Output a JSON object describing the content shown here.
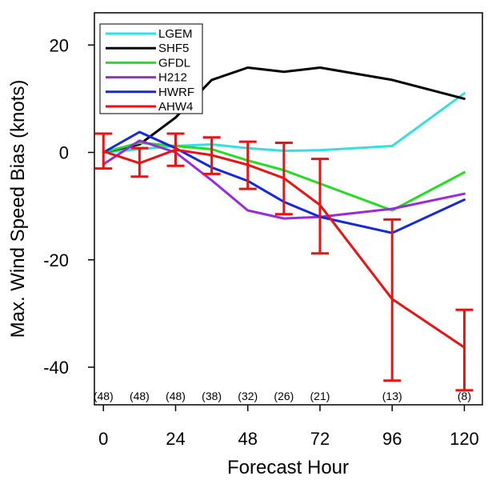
{
  "chart_data": {
    "type": "line",
    "title": "",
    "xlabel": "Forecast Hour",
    "ylabel": "Max. Wind Speed Bias (knots)",
    "xlim": [
      -3,
      126
    ],
    "ylim": [
      -47,
      26
    ],
    "x_ticks": [
      0,
      24,
      48,
      72,
      96,
      120
    ],
    "x_tick_labels": [
      "0",
      "24",
      "48",
      "72",
      "96",
      "120"
    ],
    "y_ticks": [
      -40,
      -20,
      0,
      20
    ],
    "y_tick_labels": [
      "-40",
      "-20",
      "0",
      "20"
    ],
    "grid": false,
    "legend_position": "top-left",
    "series": [
      {
        "name": "LGEM",
        "color": "#33e0e0",
        "x": [
          0,
          12,
          24,
          36,
          48,
          60,
          72,
          96,
          120
        ],
        "y": [
          0,
          0.6,
          1.2,
          1.5,
          0.8,
          0.3,
          0.4,
          1.2,
          11
        ]
      },
      {
        "name": "SHF5",
        "color": "#000000",
        "x": [
          0,
          12,
          24,
          36,
          48,
          60,
          72,
          96,
          120
        ],
        "y": [
          0,
          1.5,
          6.5,
          13.5,
          15.8,
          15.0,
          15.8,
          13.5,
          10
        ]
      },
      {
        "name": "GFDL",
        "color": "#22dd22",
        "x": [
          0,
          12,
          24,
          36,
          48,
          60,
          72,
          96,
          120
        ],
        "y": [
          0,
          1.8,
          1.2,
          0.6,
          -1.5,
          -3.3,
          -5.8,
          -10.8,
          -3.7
        ]
      },
      {
        "name": "H212",
        "color": "#9a2bdc",
        "x": [
          0,
          12,
          24,
          36,
          48,
          60,
          72,
          96,
          120
        ],
        "y": [
          -2.2,
          2.2,
          0.0,
          -5.2,
          -10.8,
          -12.3,
          -12.0,
          -10.5,
          -7.7
        ]
      },
      {
        "name": "HWRF",
        "color": "#1428e0",
        "x": [
          0,
          12,
          24,
          36,
          48,
          60,
          72,
          96,
          120
        ],
        "y": [
          0,
          3.8,
          0.8,
          -2.8,
          -5.3,
          -9.2,
          -12.0,
          -15.0,
          -8.8
        ]
      },
      {
        "name": "AHW4",
        "color": "#ee1111",
        "x": [
          0,
          12,
          24,
          36,
          48,
          60,
          72,
          96,
          120
        ],
        "y": [
          0.2,
          -2.0,
          0.5,
          -0.5,
          -2.3,
          -4.8,
          -9.8,
          -27.3,
          -36.3
        ]
      }
    ],
    "error_bars": {
      "series": "AHW4",
      "color": "#ee1111",
      "x": [
        0,
        12,
        24,
        36,
        48,
        60,
        72,
        96,
        120
      ],
      "low": [
        -3.0,
        -4.5,
        -2.5,
        -4.0,
        -6.8,
        -11.5,
        -18.8,
        -42.5,
        -44.3
      ],
      "high": [
        3.5,
        0.8,
        3.5,
        2.8,
        2.0,
        1.8,
        -1.2,
        -12.5,
        -29.3
      ]
    },
    "sample_counts": {
      "x": [
        0,
        12,
        24,
        36,
        48,
        60,
        72,
        96,
        120
      ],
      "labels": [
        "(48)",
        "(48)",
        "(48)",
        "(38)",
        "(32)",
        "(26)",
        "(21)",
        "(13)",
        "(8)"
      ]
    }
  }
}
